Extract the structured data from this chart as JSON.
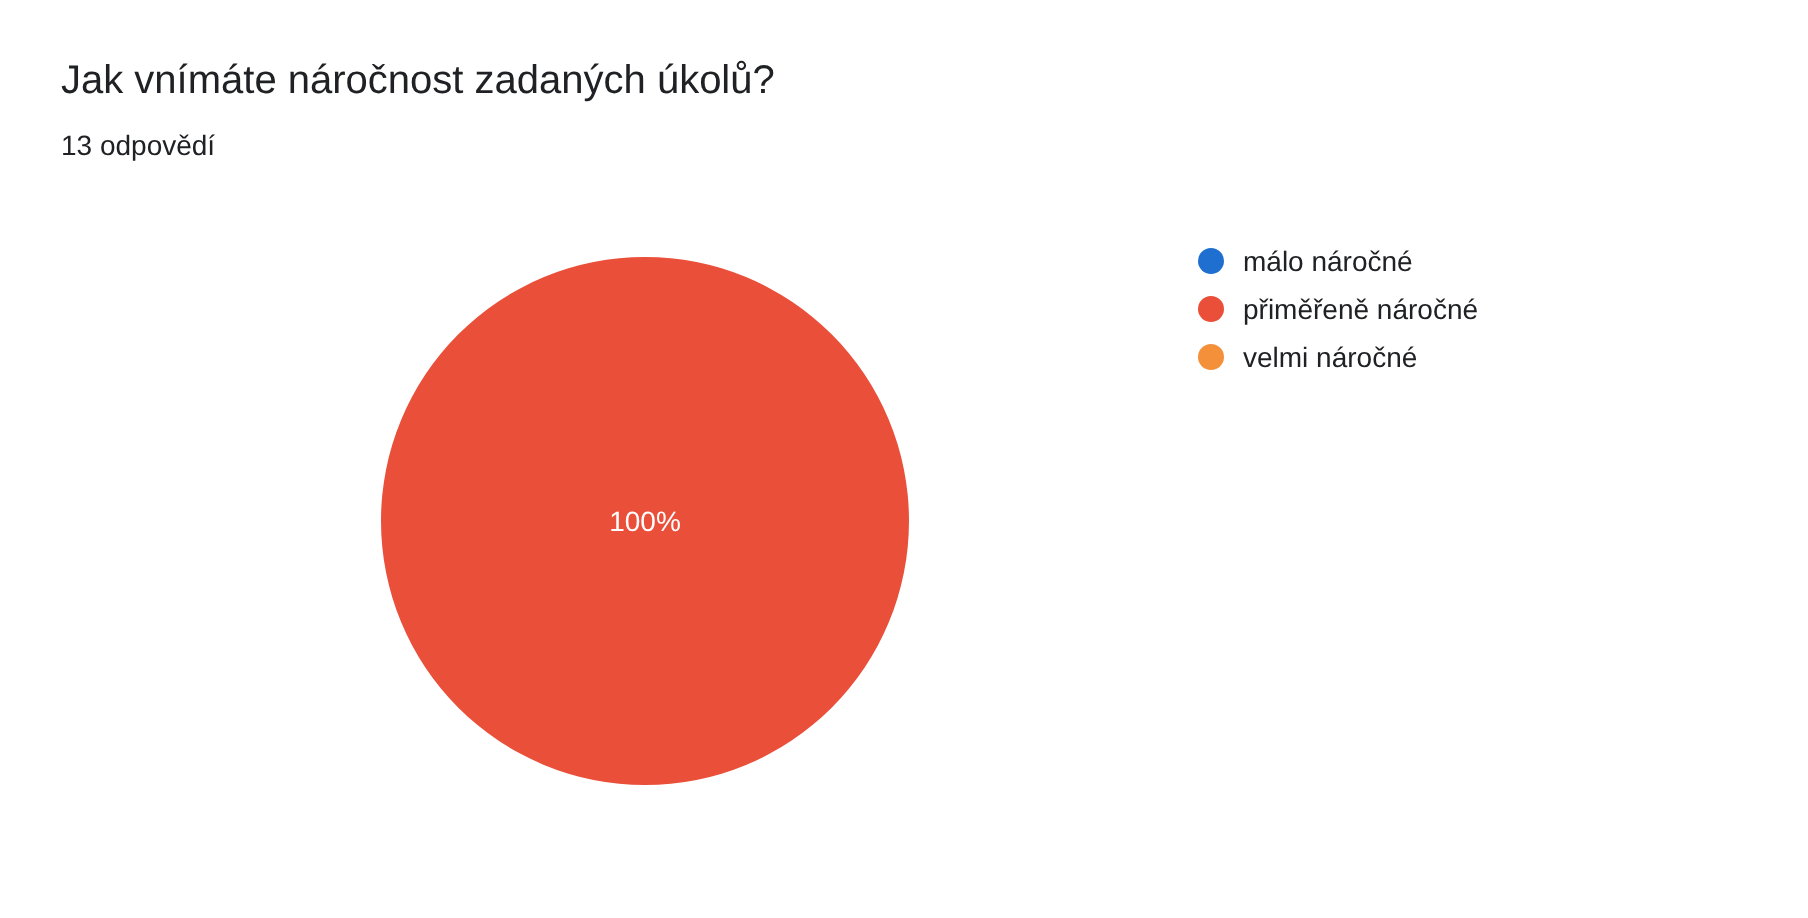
{
  "chart_data": {
    "type": "pie",
    "title": "Jak vnímáte náročnost zadaných úkolů?",
    "subtitle": "13 odpovědí",
    "categories": [
      "málo náročné",
      "přiměřeně náročné",
      "velmi náročné"
    ],
    "values": [
      0,
      100,
      0
    ],
    "colors": [
      "#1f6fd1",
      "#ea4f3a",
      "#f4903a"
    ],
    "value_labels": [
      null,
      "100%",
      null
    ],
    "legend": "right"
  }
}
